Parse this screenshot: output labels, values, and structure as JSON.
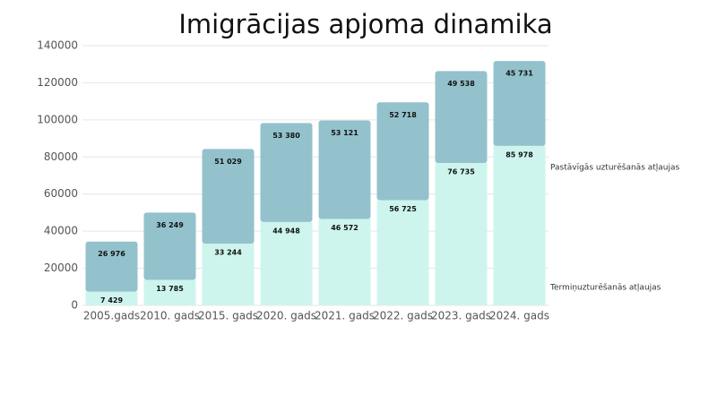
{
  "chart_data": {
    "type": "stacked_bar",
    "title": "Imigrācijas apjoma dinamika",
    "categories": [
      "2005.gads",
      "2010. gads",
      "2015. gads",
      "2020. gads",
      "2021. gads",
      "2022. gads",
      "2023. gads",
      "2024. gads"
    ],
    "series": [
      {
        "name": "Termiņuzturēšanās atļaujas",
        "color": "#cdf5ee",
        "values": [
          7429,
          13785,
          33244,
          44948,
          46572,
          56725,
          76735,
          85978
        ],
        "value_labels": [
          "7 429",
          "13 785",
          "33 244",
          "44 948",
          "46 572",
          "56 725",
          "76 735",
          "85 978"
        ]
      },
      {
        "name": "Pastāvīgās uzturēšanās atļaujas",
        "color": "#93c2cc",
        "values": [
          26976,
          36249,
          51029,
          53380,
          53121,
          52718,
          49538,
          45731
        ],
        "value_labels": [
          "26 976",
          "36 249",
          "51 029",
          "53 380",
          "53 121",
          "52 718",
          "49 538",
          "45 731"
        ]
      }
    ],
    "ylim": [
      0,
      140000
    ],
    "yticks": [
      0,
      20000,
      40000,
      60000,
      80000,
      100000,
      120000,
      140000
    ],
    "grid": true
  }
}
